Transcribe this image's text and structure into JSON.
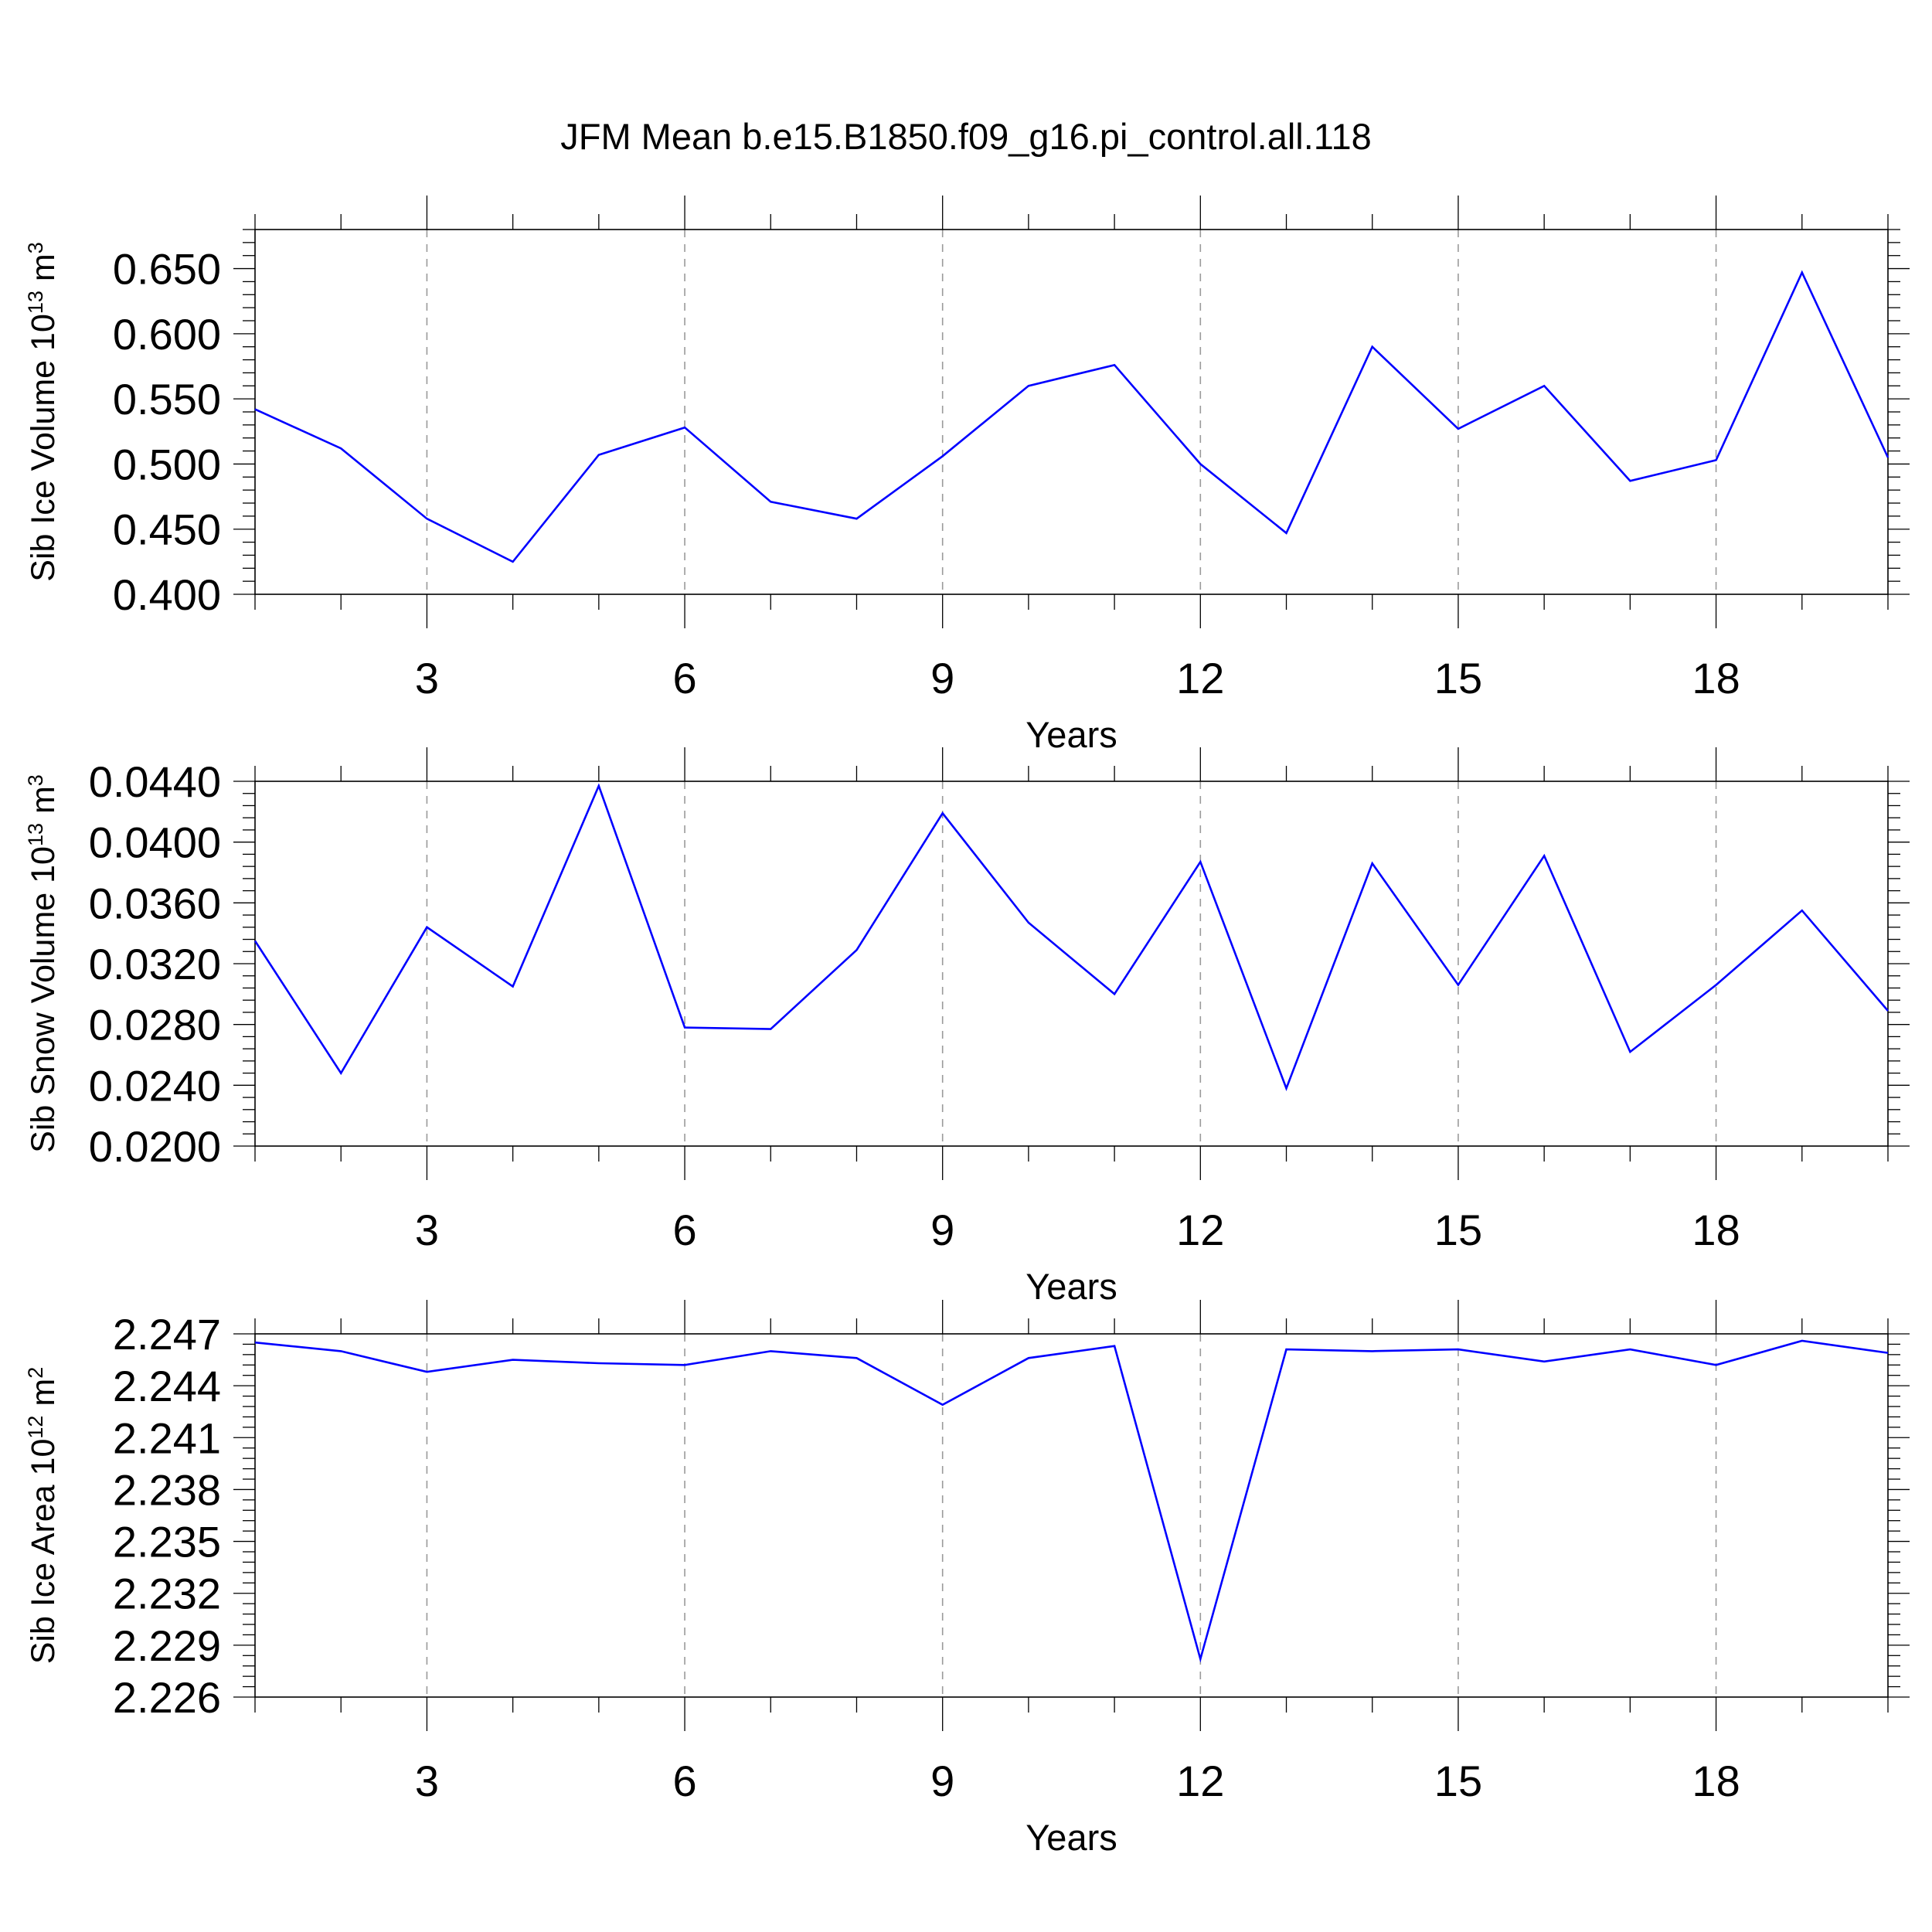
{
  "colors": {
    "series": "#0000ff",
    "grid": "#9a9a9a",
    "axis": "#000000"
  },
  "chart_data": [
    {
      "type": "line",
      "title": "JFM Mean b.e15.B1850.f09_g16.pi_control.all.118",
      "xlabel": "Years",
      "ylabel_main": "Sib Ice Volume 10",
      "ylabel_exp": "13",
      "ylabel_unit": " m",
      "ylabel_unit_exp": "3",
      "xlim": [
        1,
        20
      ],
      "ylim": [
        0.4,
        0.68
      ],
      "xticks": [
        3,
        6,
        9,
        12,
        15,
        18
      ],
      "xtick_labels": [
        "3",
        "6",
        "9",
        "12",
        "15",
        "18"
      ],
      "yticks": [
        0.4,
        0.45,
        0.5,
        0.55,
        0.6,
        0.65
      ],
      "ytick_labels": [
        "0.400",
        "0.450",
        "0.500",
        "0.550",
        "0.600",
        "0.650"
      ],
      "grid": "vertical dashed at major x ticks",
      "x": [
        1,
        2,
        3,
        4,
        5,
        6,
        7,
        8,
        9,
        10,
        11,
        12,
        13,
        14,
        15,
        16,
        17,
        18,
        19,
        20
      ],
      "values": [
        0.542,
        0.512,
        0.458,
        0.425,
        0.507,
        0.528,
        0.471,
        0.458,
        0.506,
        0.56,
        0.576,
        0.5,
        0.447,
        0.59,
        0.527,
        0.56,
        0.487,
        0.503,
        0.647,
        0.505
      ]
    },
    {
      "type": "line",
      "xlabel": "Years",
      "ylabel_main": "Sib Snow Volume 10",
      "ylabel_exp": "13",
      "ylabel_unit": " m",
      "ylabel_unit_exp": "3",
      "xlim": [
        1,
        20
      ],
      "ylim": [
        0.02,
        0.044
      ],
      "xticks": [
        3,
        6,
        9,
        12,
        15,
        18
      ],
      "xtick_labels": [
        "3",
        "6",
        "9",
        "12",
        "15",
        "18"
      ],
      "yticks": [
        0.02,
        0.024,
        0.028,
        0.032,
        0.036,
        0.04,
        0.044
      ],
      "ytick_labels": [
        "0.0200",
        "0.0240",
        "0.0280",
        "0.0320",
        "0.0360",
        "0.0400",
        "0.0440"
      ],
      "grid": "vertical dashed at major x ticks",
      "x": [
        1,
        2,
        3,
        4,
        5,
        6,
        7,
        8,
        9,
        10,
        11,
        12,
        13,
        14,
        15,
        16,
        17,
        18,
        19,
        20
      ],
      "values": [
        0.0335,
        0.0248,
        0.0344,
        0.0305,
        0.0437,
        0.0278,
        0.0277,
        0.0329,
        0.0419,
        0.0347,
        0.03,
        0.0387,
        0.0238,
        0.0386,
        0.0306,
        0.0391,
        0.0262,
        0.0306,
        0.0355,
        0.0289
      ]
    },
    {
      "type": "line",
      "xlabel": "Years",
      "ylabel_main": "Sib Ice Area 10",
      "ylabel_exp": "12",
      "ylabel_unit": " m",
      "ylabel_unit_exp": "2",
      "xlim": [
        1,
        20
      ],
      "ylim": [
        2.226,
        2.247
      ],
      "xticks": [
        3,
        6,
        9,
        12,
        15,
        18
      ],
      "xtick_labels": [
        "3",
        "6",
        "9",
        "12",
        "15",
        "18"
      ],
      "yticks": [
        2.226,
        2.229,
        2.232,
        2.235,
        2.238,
        2.241,
        2.244,
        2.247
      ],
      "ytick_labels": [
        "2.226",
        "2.229",
        "2.232",
        "2.235",
        "2.238",
        "2.241",
        "2.244",
        "2.247"
      ],
      "grid": "vertical dashed at major x ticks",
      "x": [
        1,
        2,
        3,
        4,
        5,
        6,
        7,
        8,
        9,
        10,
        11,
        12,
        13,
        14,
        15,
        16,
        17,
        18,
        19,
        20
      ],
      "values": [
        2.2465,
        2.246,
        2.2448,
        2.2455,
        2.2453,
        2.2452,
        2.246,
        2.2456,
        2.2429,
        2.2456,
        2.2463,
        2.2282,
        2.2461,
        2.246,
        2.2461,
        2.2454,
        2.2461,
        2.2452,
        2.2466,
        2.2459
      ]
    }
  ]
}
